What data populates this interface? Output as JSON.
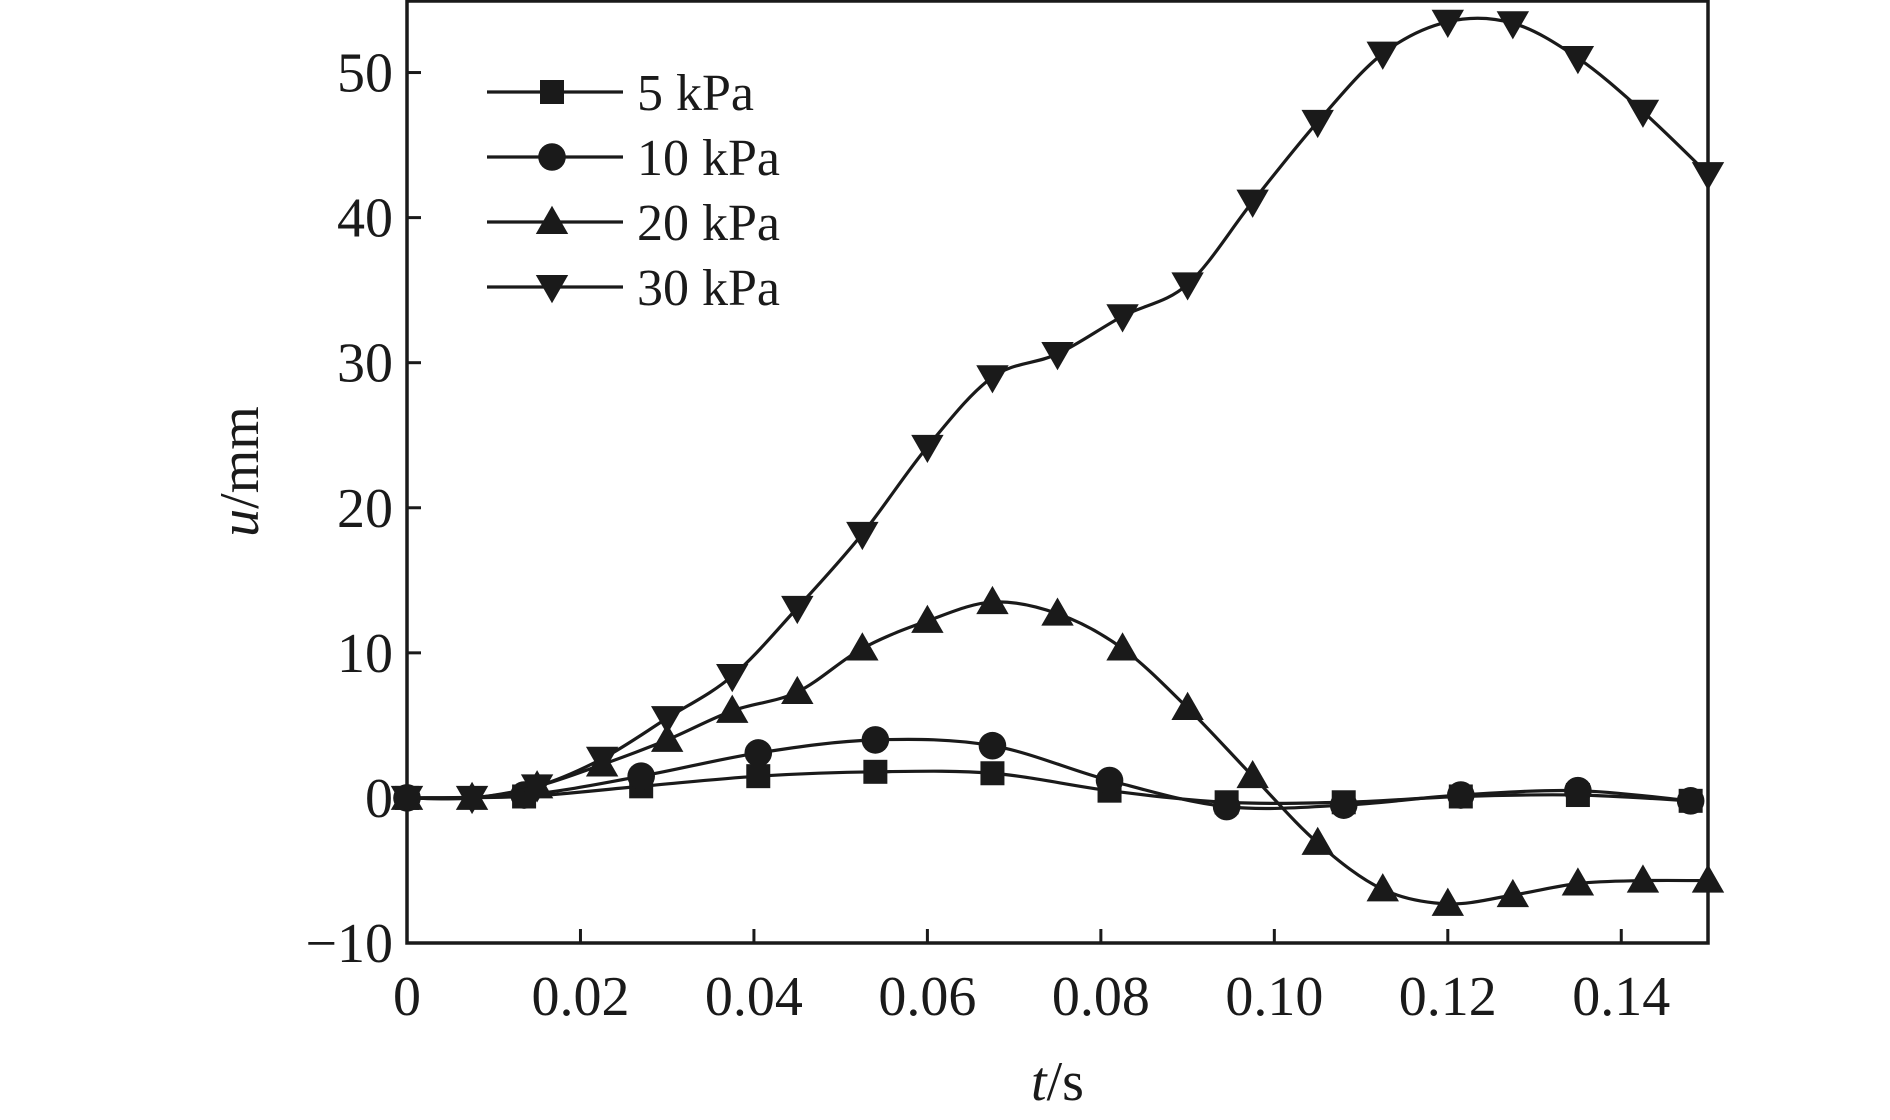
{
  "chart_data": {
    "type": "line",
    "title": "",
    "xlabel": "t/s",
    "ylabel": "u/mm",
    "xlim": [
      0,
      0.15
    ],
    "ylim": [
      -10,
      55
    ],
    "grid": false,
    "legend_position": "top-left",
    "x_ticks": [
      "0",
      "0.02",
      "0.04",
      "0.06",
      "0.08",
      "0.10",
      "0.12",
      "0.14"
    ],
    "x_tick_values": [
      0,
      0.02,
      0.04,
      0.06,
      0.08,
      0.1,
      0.12,
      0.14
    ],
    "y_ticks": [
      "−10",
      "0",
      "10",
      "20",
      "30",
      "40",
      "50"
    ],
    "y_tick_values": [
      -10,
      0,
      10,
      20,
      30,
      40,
      50
    ],
    "series": [
      {
        "name": "5 kPa",
        "marker": "square",
        "x": [
          0,
          0.0135,
          0.027,
          0.0405,
          0.054,
          0.0675,
          0.081,
          0.0945,
          0.108,
          0.1215,
          0.135,
          0.148
        ],
        "y": [
          0,
          0.1,
          0.8,
          1.5,
          1.8,
          1.7,
          0.5,
          -0.3,
          -0.3,
          0.1,
          0.2,
          -0.2
        ]
      },
      {
        "name": "10 kPa",
        "marker": "circle",
        "x": [
          0,
          0.0135,
          0.027,
          0.0405,
          0.054,
          0.0675,
          0.081,
          0.0945,
          0.108,
          0.1215,
          0.135,
          0.148
        ],
        "y": [
          0,
          0.2,
          1.5,
          3.1,
          4.0,
          3.6,
          1.2,
          -0.6,
          -0.5,
          0.2,
          0.5,
          -0.2
        ]
      },
      {
        "name": "20 kPa",
        "marker": "triangle-up",
        "x": [
          0,
          0.0075,
          0.015,
          0.0225,
          0.03,
          0.0375,
          0.045,
          0.0525,
          0.06,
          0.0675,
          0.075,
          0.0825,
          0.09,
          0.0975,
          0.105,
          0.1125,
          0.12,
          0.1275,
          0.135,
          0.1425,
          0.15
        ],
        "y": [
          0,
          0,
          0.8,
          2.3,
          4.0,
          6.0,
          7.3,
          10.3,
          12.2,
          13.5,
          12.7,
          10.3,
          6.2,
          1.5,
          -3.1,
          -6.3,
          -7.3,
          -6.7,
          -5.9,
          -5.7,
          -5.7
        ]
      },
      {
        "name": "30 kPa",
        "marker": "triangle-down",
        "x": [
          0,
          0.0075,
          0.015,
          0.0225,
          0.03,
          0.0375,
          0.045,
          0.0525,
          0.06,
          0.0675,
          0.075,
          0.0825,
          0.09,
          0.0975,
          0.105,
          0.1125,
          0.12,
          0.1275,
          0.135,
          0.1425,
          0.15
        ],
        "y": [
          0,
          0,
          0.8,
          2.7,
          5.5,
          8.4,
          13.1,
          18.2,
          24.2,
          29.0,
          30.6,
          33.2,
          35.4,
          41.1,
          46.6,
          51.3,
          53.5,
          53.4,
          51.0,
          47.3,
          43.0
        ]
      }
    ]
  }
}
